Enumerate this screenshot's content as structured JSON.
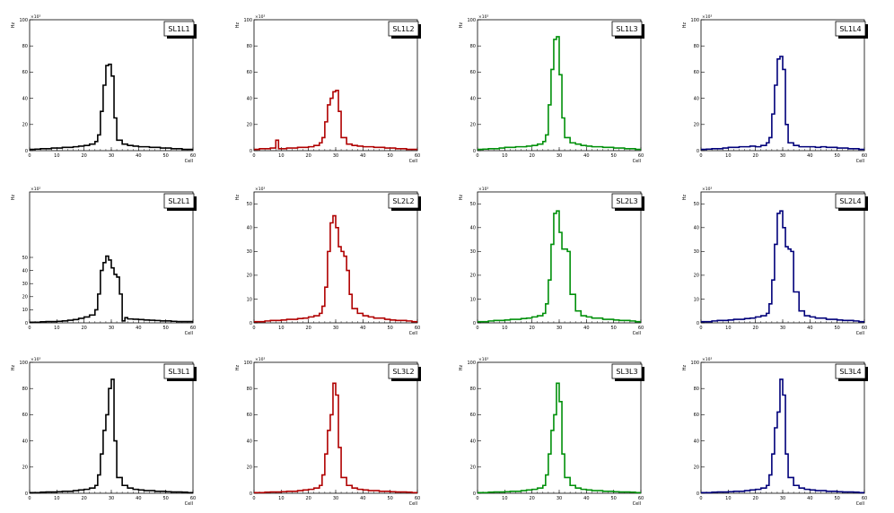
{
  "chart_data": [
    {
      "type": "line",
      "title": "SL1L1",
      "color": "#000000",
      "xlabel": "Cell",
      "ylabel": "Hz",
      "exp": "×10³",
      "xlim": [
        0,
        60
      ],
      "ylim": [
        0,
        100
      ],
      "xticks": [
        0,
        10,
        20,
        30,
        40,
        50,
        60
      ],
      "yticks": [
        0,
        20,
        40,
        60,
        80,
        100
      ],
      "x": [
        0,
        2,
        4,
        6,
        8,
        10,
        12,
        14,
        16,
        18,
        20,
        22,
        24,
        25,
        26,
        27,
        28,
        29,
        30,
        31,
        32,
        34,
        36,
        38,
        40,
        42,
        44,
        46,
        48,
        50,
        52,
        54,
        56,
        58,
        60
      ],
      "y": [
        1,
        1.2,
        1.5,
        1.5,
        2,
        2,
        2.5,
        2.5,
        3,
        3.5,
        4,
        5,
        7,
        12,
        30,
        50,
        65,
        66,
        57,
        25,
        8,
        5,
        4,
        3.5,
        3,
        3,
        2.5,
        2.5,
        2,
        2,
        1.5,
        1.5,
        1,
        1,
        1
      ]
    },
    {
      "type": "line",
      "title": "SL1L2",
      "color": "#b00000",
      "xlabel": "Cell",
      "ylabel": "Hz",
      "exp": "×10³",
      "xlim": [
        0,
        60
      ],
      "ylim": [
        0,
        100
      ],
      "xticks": [
        0,
        10,
        20,
        30,
        40,
        50,
        60
      ],
      "yticks": [
        0,
        20,
        40,
        60,
        80,
        100
      ],
      "x": [
        0,
        2,
        4,
        6,
        8,
        9,
        10,
        12,
        14,
        16,
        18,
        20,
        22,
        24,
        25,
        26,
        27,
        28,
        29,
        30,
        31,
        32,
        34,
        36,
        38,
        40,
        42,
        44,
        46,
        48,
        50,
        52,
        54,
        56,
        58,
        60
      ],
      "y": [
        1,
        1.5,
        1.5,
        2,
        8,
        1.5,
        1.5,
        2,
        2,
        2.5,
        2.5,
        3,
        4,
        6,
        10,
        22,
        35,
        40,
        45,
        46,
        30,
        10,
        5,
        4,
        3.5,
        3,
        3,
        2.5,
        2.5,
        2,
        2,
        1.5,
        1.5,
        1,
        1,
        1
      ]
    },
    {
      "type": "line",
      "title": "SL1L3",
      "color": "#00900a",
      "xlabel": "Cell",
      "ylabel": "Hz",
      "exp": "×10³",
      "xlim": [
        0,
        60
      ],
      "ylim": [
        0,
        100
      ],
      "xticks": [
        0,
        10,
        20,
        30,
        40,
        50,
        60
      ],
      "yticks": [
        0,
        20,
        40,
        60,
        80,
        100
      ],
      "x": [
        0,
        2,
        4,
        6,
        8,
        10,
        12,
        14,
        16,
        18,
        20,
        22,
        24,
        25,
        26,
        27,
        28,
        29,
        30,
        31,
        32,
        34,
        36,
        38,
        40,
        42,
        44,
        46,
        48,
        50,
        52,
        54,
        56,
        58,
        60
      ],
      "y": [
        1,
        1.2,
        1.5,
        1.5,
        2,
        2.5,
        2.5,
        3,
        3,
        3.5,
        4,
        5,
        7,
        12,
        35,
        62,
        85,
        87,
        58,
        25,
        10,
        6,
        5,
        4,
        3.5,
        3,
        3,
        2.5,
        2.5,
        2,
        2,
        1.5,
        1.5,
        1,
        1
      ]
    },
    {
      "type": "line",
      "title": "SL1L4",
      "color": "#00007a",
      "xlabel": "Cell",
      "ylabel": "Hz",
      "exp": "×10³",
      "xlim": [
        0,
        60
      ],
      "ylim": [
        0,
        100
      ],
      "xticks": [
        0,
        10,
        20,
        30,
        40,
        50,
        60
      ],
      "yticks": [
        0,
        20,
        40,
        60,
        80,
        100
      ],
      "x": [
        0,
        2,
        4,
        6,
        8,
        10,
        12,
        14,
        16,
        18,
        20,
        22,
        24,
        25,
        26,
        27,
        28,
        29,
        30,
        31,
        32,
        34,
        36,
        38,
        40,
        42,
        44,
        46,
        48,
        50,
        52,
        54,
        56,
        58,
        60
      ],
      "y": [
        1,
        1.2,
        1.5,
        1.5,
        2,
        2.5,
        2.5,
        3,
        3,
        3.5,
        3,
        4,
        6,
        10,
        28,
        50,
        70,
        72,
        62,
        20,
        6,
        4,
        3,
        3,
        3,
        2.5,
        3,
        2.5,
        2.5,
        2,
        2,
        1.5,
        1.5,
        1,
        1
      ]
    },
    {
      "type": "line",
      "title": "SL2L1",
      "color": "#000000",
      "xlabel": "Cell",
      "ylabel": "Hz",
      "exp": "×10²",
      "xlim": [
        0,
        60
      ],
      "ylim": [
        0,
        100
      ],
      "xticks": [
        0,
        10,
        20,
        30,
        40,
        50,
        60
      ],
      "yticks": [
        0,
        10,
        20,
        30,
        40,
        50
      ],
      "x": [
        0,
        2,
        4,
        6,
        8,
        10,
        12,
        14,
        16,
        18,
        20,
        22,
        24,
        25,
        26,
        27,
        28,
        29,
        30,
        31,
        32,
        33,
        34,
        35,
        36,
        38,
        40,
        42,
        44,
        46,
        48,
        50,
        52,
        54,
        56,
        58,
        60
      ],
      "y": [
        0.5,
        0.5,
        0.8,
        1,
        1,
        1.2,
        1.5,
        2,
        2.5,
        3.5,
        4.5,
        6,
        10,
        22,
        40,
        46,
        51,
        48,
        42,
        37,
        35,
        22,
        1.5,
        4,
        3,
        2.8,
        2.5,
        2.2,
        2,
        1.8,
        1.5,
        1.5,
        1.2,
        1,
        1,
        1,
        1
      ]
    },
    {
      "type": "line",
      "title": "SL2L2",
      "color": "#b00000",
      "xlabel": "Cell",
      "ylabel": "Hz",
      "exp": "×10³",
      "xlim": [
        0,
        60
      ],
      "ylim": [
        0,
        55
      ],
      "xticks": [
        0,
        10,
        20,
        30,
        40,
        50,
        60
      ],
      "yticks": [
        0,
        10,
        20,
        30,
        40,
        50
      ],
      "x": [
        0,
        2,
        4,
        6,
        8,
        10,
        12,
        14,
        16,
        18,
        20,
        22,
        24,
        25,
        26,
        27,
        28,
        29,
        30,
        31,
        32,
        33,
        34,
        35,
        36,
        38,
        40,
        42,
        44,
        46,
        48,
        50,
        52,
        54,
        56,
        58,
        60
      ],
      "y": [
        0.5,
        0.5,
        0.8,
        1,
        1,
        1.2,
        1.5,
        1.5,
        1.8,
        2,
        2.5,
        3,
        4,
        7,
        15,
        30,
        42,
        45,
        40,
        32,
        30,
        28,
        22,
        12,
        6,
        4,
        3,
        2.5,
        2,
        2,
        1.5,
        1.2,
        1,
        1,
        0.8,
        0.5,
        0.5
      ]
    },
    {
      "type": "line",
      "title": "SL2L3",
      "color": "#00900a",
      "xlabel": "Cell",
      "ylabel": "Hz",
      "exp": "×10³",
      "xlim": [
        0,
        60
      ],
      "ylim": [
        0,
        55
      ],
      "xticks": [
        0,
        10,
        20,
        30,
        40,
        50,
        60
      ],
      "yticks": [
        0,
        10,
        20,
        30,
        40,
        50
      ],
      "x": [
        0,
        2,
        4,
        6,
        8,
        10,
        12,
        14,
        16,
        18,
        20,
        22,
        24,
        25,
        26,
        27,
        28,
        29,
        30,
        31,
        32,
        33,
        34,
        36,
        38,
        40,
        42,
        44,
        46,
        48,
        50,
        52,
        54,
        56,
        58,
        60
      ],
      "y": [
        0.5,
        0.5,
        0.8,
        1,
        1,
        1.2,
        1.5,
        1.5,
        1.8,
        2,
        2.5,
        3,
        4,
        8,
        18,
        33,
        46,
        47,
        38,
        31,
        31,
        30,
        12,
        5,
        3,
        2.5,
        2,
        2,
        1.5,
        1.5,
        1.2,
        1,
        1,
        0.8,
        0.5,
        0.5
      ]
    },
    {
      "type": "line",
      "title": "SL2L4",
      "color": "#00007a",
      "xlabel": "Cell",
      "ylabel": "Hz",
      "exp": "×10³",
      "xlim": [
        0,
        60
      ],
      "ylim": [
        0,
        55
      ],
      "xticks": [
        0,
        10,
        20,
        30,
        40,
        50,
        60
      ],
      "yticks": [
        0,
        10,
        20,
        30,
        40,
        50
      ],
      "x": [
        0,
        2,
        4,
        6,
        8,
        10,
        12,
        14,
        16,
        18,
        20,
        22,
        24,
        25,
        26,
        27,
        28,
        29,
        30,
        31,
        32,
        33,
        34,
        36,
        38,
        40,
        42,
        44,
        46,
        48,
        50,
        52,
        54,
        56,
        58,
        60
      ],
      "y": [
        0.5,
        0.5,
        0.8,
        1,
        1,
        1.2,
        1.5,
        1.5,
        1.8,
        2,
        2.5,
        3,
        4,
        8,
        18,
        33,
        46,
        47,
        40,
        32,
        31,
        30,
        13,
        5,
        3,
        2.5,
        2,
        2,
        1.5,
        1.5,
        1.2,
        1,
        1,
        0.8,
        0.5,
        0.5
      ]
    },
    {
      "type": "line",
      "title": "SL3L1",
      "color": "#000000",
      "xlabel": "Cell",
      "ylabel": "Hz",
      "exp": "×10³",
      "xlim": [
        0,
        60
      ],
      "ylim": [
        0,
        100
      ],
      "xticks": [
        0,
        10,
        20,
        30,
        40,
        50,
        60
      ],
      "yticks": [
        0,
        20,
        40,
        60,
        80,
        100
      ],
      "x": [
        0,
        2,
        4,
        6,
        8,
        10,
        12,
        14,
        16,
        18,
        20,
        22,
        24,
        25,
        26,
        27,
        28,
        29,
        30,
        31,
        32,
        34,
        36,
        38,
        40,
        42,
        44,
        46,
        48,
        50,
        52,
        54,
        56,
        58,
        60
      ],
      "y": [
        0.5,
        0.5,
        0.8,
        1,
        1,
        1.2,
        1.5,
        1.5,
        2,
        2.5,
        3,
        4,
        6,
        14,
        30,
        48,
        60,
        80,
        87,
        40,
        12,
        6,
        4,
        3,
        2.5,
        2,
        2,
        1.5,
        1.5,
        1.2,
        1,
        1,
        0.8,
        0.5,
        0.5
      ]
    },
    {
      "type": "line",
      "title": "SL3L2",
      "color": "#b00000",
      "xlabel": "Cell",
      "ylabel": "Hz",
      "exp": "×10³",
      "xlim": [
        0,
        60
      ],
      "ylim": [
        0,
        100
      ],
      "xticks": [
        0,
        10,
        20,
        30,
        40,
        50,
        60
      ],
      "yticks": [
        0,
        20,
        40,
        60,
        80,
        100
      ],
      "x": [
        0,
        2,
        4,
        6,
        8,
        10,
        12,
        14,
        16,
        18,
        20,
        22,
        24,
        25,
        26,
        27,
        28,
        29,
        30,
        31,
        32,
        34,
        36,
        38,
        40,
        42,
        44,
        46,
        48,
        50,
        52,
        54,
        56,
        58,
        60
      ],
      "y": [
        0.5,
        0.5,
        0.8,
        1,
        1,
        1.2,
        1.5,
        1.5,
        2,
        2.5,
        3,
        4,
        6,
        14,
        30,
        48,
        60,
        84,
        75,
        35,
        12,
        6,
        4,
        3,
        2.5,
        2,
        2,
        1.5,
        1.5,
        1.2,
        1,
        1,
        0.8,
        0.5,
        0.5
      ]
    },
    {
      "type": "line",
      "title": "SL3L3",
      "color": "#00900a",
      "xlabel": "Cell",
      "ylabel": "Hz",
      "exp": "×10³",
      "xlim": [
        0,
        60
      ],
      "ylim": [
        0,
        100
      ],
      "xticks": [
        0,
        10,
        20,
        30,
        40,
        50,
        60
      ],
      "yticks": [
        0,
        20,
        40,
        60,
        80,
        100
      ],
      "x": [
        0,
        2,
        4,
        6,
        8,
        10,
        12,
        14,
        16,
        18,
        20,
        22,
        24,
        25,
        26,
        27,
        28,
        29,
        30,
        31,
        32,
        34,
        36,
        38,
        40,
        42,
        44,
        46,
        48,
        50,
        52,
        54,
        56,
        58,
        60
      ],
      "y": [
        0.5,
        0.5,
        0.8,
        1,
        1,
        1.2,
        1.5,
        1.5,
        2,
        2.5,
        3,
        4,
        6,
        14,
        30,
        48,
        60,
        84,
        70,
        30,
        12,
        6,
        4,
        3,
        2.5,
        2,
        2,
        1.5,
        1.5,
        1.2,
        1,
        1,
        0.8,
        0.5,
        0.5
      ]
    },
    {
      "type": "line",
      "title": "SL3L4",
      "color": "#00007a",
      "xlabel": "Cell",
      "ylabel": "Hz",
      "exp": "×10³",
      "xlim": [
        0,
        60
      ],
      "ylim": [
        0,
        100
      ],
      "xticks": [
        0,
        10,
        20,
        30,
        40,
        50,
        60
      ],
      "yticks": [
        0,
        20,
        40,
        60,
        80,
        100
      ],
      "x": [
        0,
        2,
        4,
        6,
        8,
        10,
        12,
        14,
        16,
        18,
        20,
        22,
        24,
        25,
        26,
        27,
        28,
        29,
        30,
        31,
        32,
        34,
        36,
        38,
        40,
        42,
        44,
        46,
        48,
        50,
        52,
        54,
        56,
        58,
        60
      ],
      "y": [
        0.5,
        0.5,
        0.8,
        1,
        1,
        1.2,
        1.5,
        1.5,
        2,
        2.5,
        3,
        4,
        6,
        14,
        30,
        50,
        62,
        87,
        75,
        30,
        12,
        6,
        4,
        3,
        2.5,
        2,
        2,
        1.5,
        1.5,
        1.2,
        1,
        1,
        0.8,
        0.5,
        0.5
      ]
    }
  ]
}
